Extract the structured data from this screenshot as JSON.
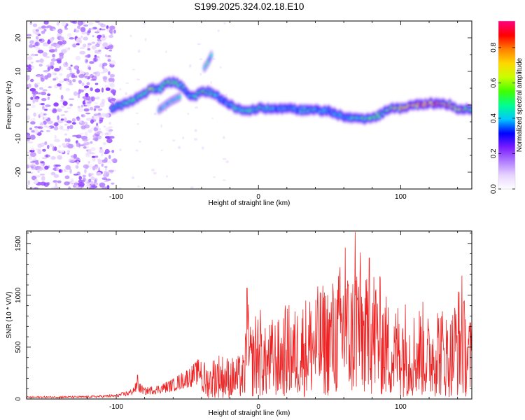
{
  "title": "S199.2025.324.02.18.E10",
  "chart_data": [
    {
      "type": "heatmap",
      "name": "spectrogram",
      "xlabel": "Height of straight line (km)",
      "ylabel": "Frequency (Hz)",
      "xlim": [
        -163,
        150
      ],
      "ylim": [
        -25,
        25
      ],
      "xticks": [
        -100,
        0,
        100
      ],
      "yticks": [
        -20,
        -10,
        0,
        10,
        20
      ],
      "xtick_labels": [
        "-100",
        "0",
        "100"
      ],
      "ytick_labels": [
        "-20",
        "-10",
        "0",
        "10",
        "20"
      ],
      "colorbar": {
        "label": "Normalized spectral amplitude",
        "range": [
          0,
          0.95
        ],
        "ticks": [
          0.0,
          0.2,
          0.4,
          0.6,
          0.8
        ],
        "tick_labels": [
          "0.0",
          "0.2",
          "0.4",
          "0.6",
          "0.8"
        ],
        "colors": [
          "#ffffff",
          "#e8d4ff",
          "#b07cff",
          "#7a1cff",
          "#0000ff",
          "#00c8ff",
          "#00ff90",
          "#40ff00",
          "#c8ff00",
          "#ffd800",
          "#ff8000",
          "#ff0000",
          "#ff0080"
        ]
      },
      "ridge": {
        "x": [
          -103,
          -95,
          -88,
          -80,
          -75,
          -70,
          -65,
          -60,
          -55,
          -50,
          -45,
          -40,
          -35,
          -30,
          -25,
          -20,
          -15,
          -10,
          -5,
          0,
          10,
          20,
          30,
          40,
          50,
          60,
          70,
          80,
          85,
          90,
          95,
          100,
          105,
          110,
          115,
          120,
          125,
          130,
          135,
          140,
          145,
          150
        ],
        "y": [
          -1,
          0,
          1.5,
          3.5,
          5,
          4.5,
          6.5,
          7,
          6,
          3.5,
          2.5,
          4,
          4,
          3,
          1.5,
          0,
          -1,
          -2,
          -1.5,
          -1,
          -1.2,
          -1,
          -1.5,
          -1.5,
          -1.8,
          -3.5,
          -4,
          -4,
          -3,
          -1.5,
          -1,
          -1,
          -0.5,
          0,
          0.2,
          0.5,
          0.5,
          0.5,
          0,
          -1,
          -1.5,
          -1
        ],
        "peak": [
          0.45,
          0.5,
          0.5,
          0.55,
          0.6,
          0.5,
          0.55,
          0.6,
          0.55,
          0.4,
          0.45,
          0.55,
          0.5,
          0.45,
          0.4,
          0.45,
          0.55,
          0.5,
          0.45,
          0.5,
          0.45,
          0.4,
          0.45,
          0.45,
          0.4,
          0.45,
          0.5,
          0.55,
          0.55,
          0.6,
          0.7,
          0.75,
          0.8,
          0.85,
          0.85,
          0.85,
          0.8,
          0.85,
          0.8,
          0.75,
          0.7,
          0.6
        ]
      },
      "side_branches": [
        {
          "x": [
            -70,
            -62,
            -55
          ],
          "y": [
            -1.5,
            1,
            2.5
          ],
          "peak": 0.45
        },
        {
          "x": [
            -38,
            -35,
            -33
          ],
          "y": [
            11,
            13,
            15
          ],
          "peak": 0.45
        }
      ]
    },
    {
      "type": "line",
      "name": "snr",
      "xlabel": "Height of straight line (km)",
      "ylabel": "SNR (10 * V/V)",
      "xlim": [
        -163,
        150
      ],
      "ylim": [
        0,
        1620
      ],
      "xticks": [
        -100,
        0,
        100
      ],
      "yticks": [
        0,
        500,
        1000,
        1500
      ],
      "xtick_labels": [
        "-100",
        "0",
        "100"
      ],
      "ytick_labels": [
        "0",
        "500",
        "1000",
        "1500"
      ],
      "color": "#ee2222",
      "envelope": {
        "x": [
          -163,
          -120,
          -100,
          -90,
          -85,
          -80,
          -70,
          -60,
          -50,
          -45,
          -40,
          -35,
          -30,
          -25,
          -20,
          -15,
          -10,
          -8,
          -5,
          0,
          5,
          10,
          15,
          20,
          25,
          30,
          40,
          50,
          55,
          60,
          65,
          70,
          75,
          80,
          85,
          90,
          95,
          100,
          105,
          110,
          115,
          120,
          125,
          130,
          135,
          140,
          145,
          150
        ],
        "y": [
          25,
          30,
          45,
          90,
          180,
          110,
          140,
          200,
          300,
          350,
          420,
          330,
          480,
          450,
          420,
          430,
          460,
          1060,
          700,
          1000,
          700,
          820,
          800,
          980,
          900,
          1000,
          1120,
          1180,
          1250,
          1480,
          1220,
          1620,
          1180,
          1380,
          1250,
          1050,
          850,
          1120,
          950,
          900,
          1000,
          820,
          1050,
          920,
          830,
          1180,
          1000,
          780
        ]
      },
      "spikes": [
        {
          "x": -85,
          "y": 230
        },
        {
          "x": -8,
          "y": 1070
        },
        {
          "x": 61,
          "y": 1460
        },
        {
          "x": 68,
          "y": 1610
        },
        {
          "x": 78,
          "y": 1360
        },
        {
          "x": 143,
          "y": 1190
        }
      ]
    }
  ]
}
